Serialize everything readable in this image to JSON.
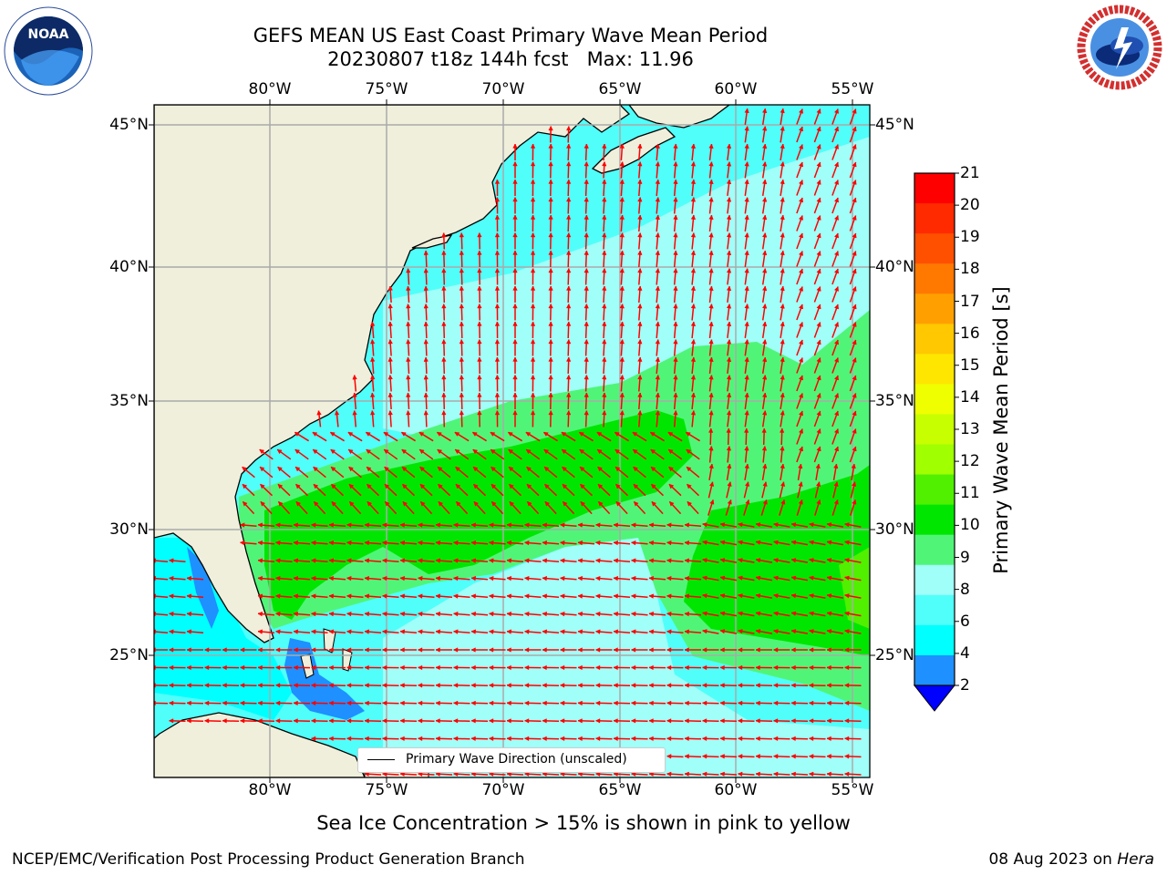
{
  "title": {
    "line1": "GEFS MEAN US East Coast Primary Wave Mean Period",
    "line2": "20230807 t18z 144h fcst   Max: 11.96"
  },
  "logos": {
    "left": "NOAA",
    "left_ring": "NATIONAL OCEANIC AND ATMOSPHERIC ADMINISTRATION · U.S. DEPARTMENT OF COMMERCE",
    "right_ring": "NATIONAL WEATHER SERVICE"
  },
  "map": {
    "lon_labels": [
      "80°W",
      "75°W",
      "70°W",
      "65°W",
      "60°W",
      "55°W"
    ],
    "lat_labels": [
      "45°N",
      "40°N",
      "35°N",
      "30°N",
      "25°N"
    ],
    "lon_range": [
      -85,
      -54
    ],
    "lat_range": [
      20.5,
      46
    ],
    "grid": true
  },
  "colorbar": {
    "label": "Primary Wave Mean Period [s]",
    "ticks": [
      "21",
      "20",
      "19",
      "18",
      "17",
      "16",
      "15",
      "14",
      "13",
      "12",
      "11",
      "10",
      "9",
      "8",
      "6",
      "4",
      "2"
    ],
    "colors": [
      "#ff0000",
      "#ff2a00",
      "#ff5000",
      "#ff7800",
      "#ffa000",
      "#ffc800",
      "#ffe600",
      "#f0ff00",
      "#c8ff00",
      "#a0ff00",
      "#50f000",
      "#00e600",
      "#50f578",
      "#a0fff8",
      "#50fffa",
      "#00ffff",
      "#1e90ff"
    ],
    "under_color": "#0000ff"
  },
  "legend": {
    "label": "Primary Wave Direction (unscaled)"
  },
  "note": "Sea Ice Concentration > 15% is shown in pink to yellow",
  "footer": {
    "left": "NCEP/EMC/Verification Post Processing Product Generation Branch",
    "right_date": "08 Aug 2023 on",
    "right_host": "Hera"
  }
}
